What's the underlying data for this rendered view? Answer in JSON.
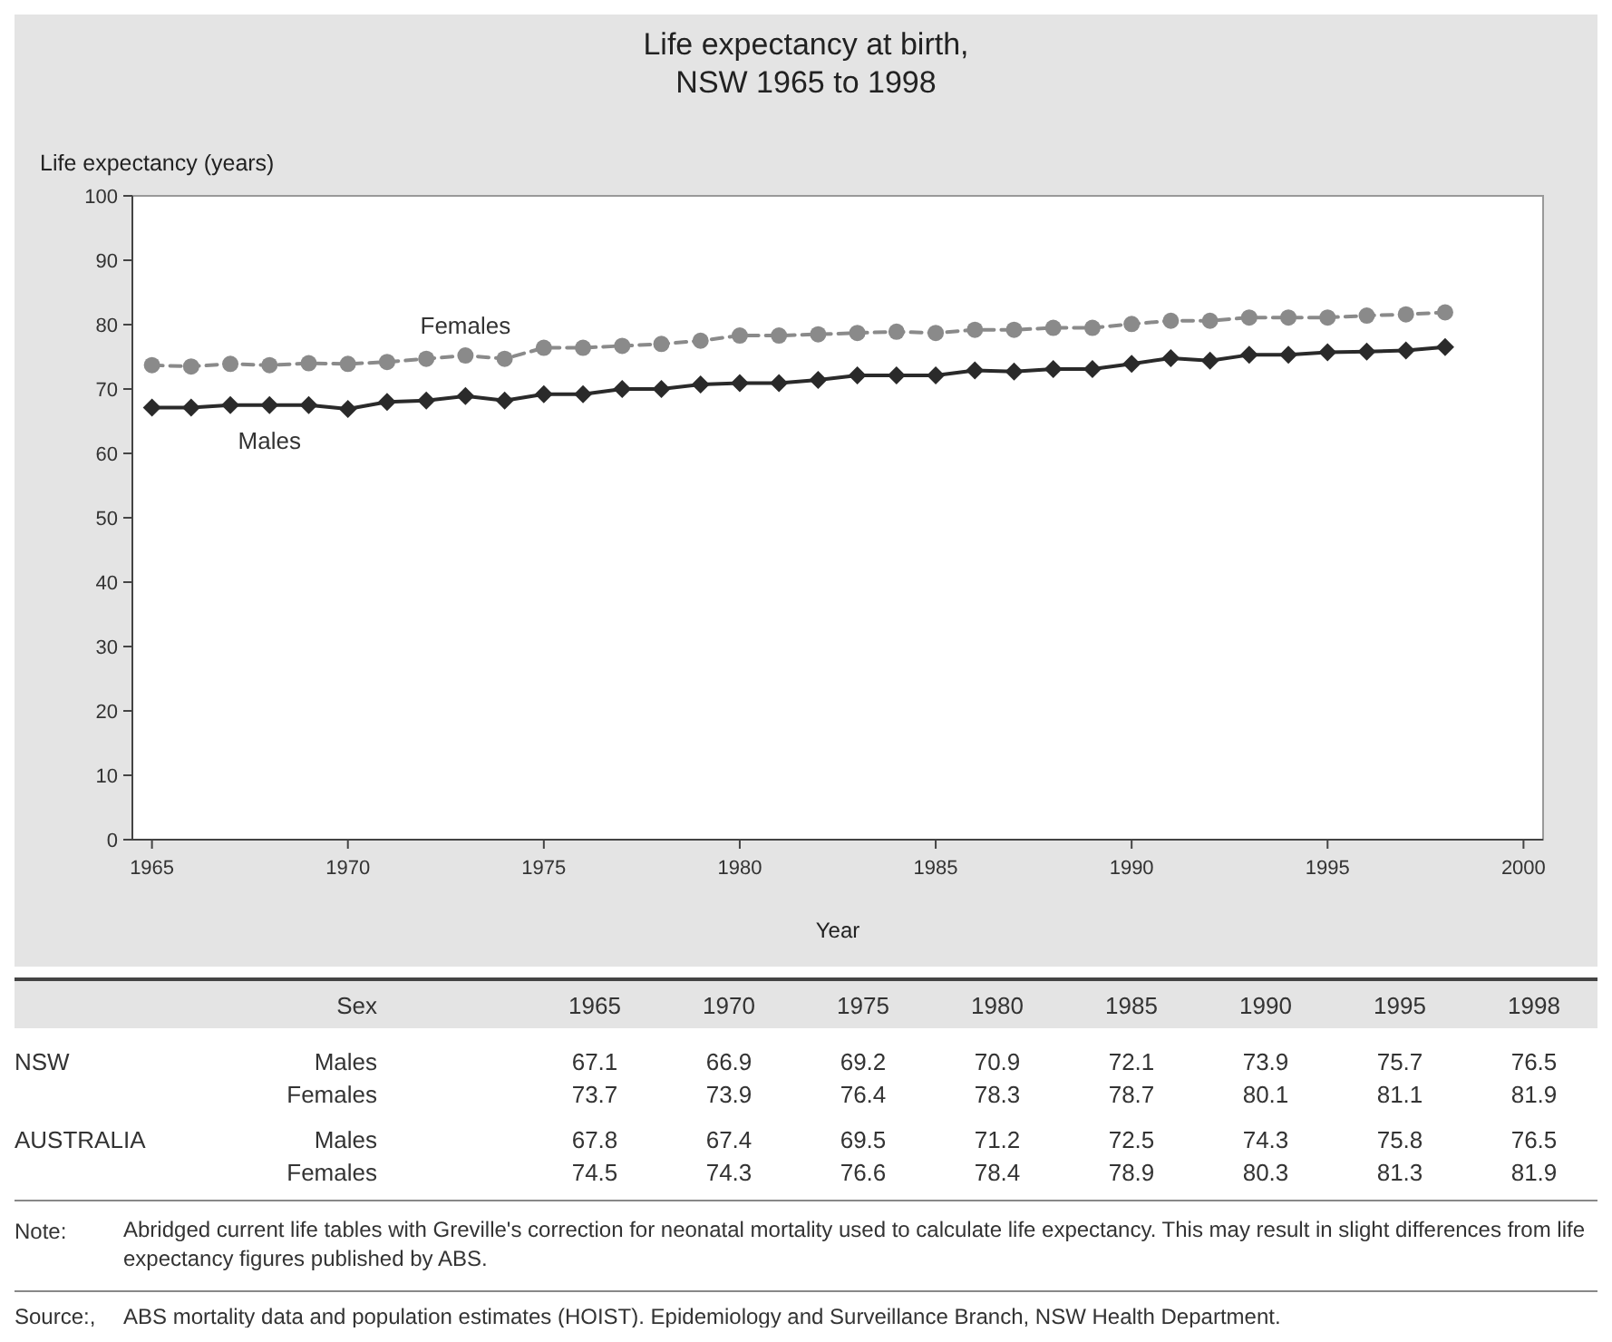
{
  "chart_data": [
    {
      "type": "line",
      "title": "Life expectancy at birth,\nNSW 1965 to 1998",
      "xlabel": "Year",
      "ylabel": "Life expectancy (years)",
      "x": [
        1965,
        1966,
        1967,
        1968,
        1969,
        1970,
        1971,
        1972,
        1973,
        1974,
        1975,
        1976,
        1977,
        1978,
        1979,
        1980,
        1981,
        1982,
        1983,
        1984,
        1985,
        1986,
        1987,
        1988,
        1989,
        1990,
        1991,
        1992,
        1993,
        1994,
        1995,
        1996,
        1997,
        1998
      ],
      "series": [
        {
          "name": "Females",
          "color": "#8a8a8a",
          "marker": "circle",
          "line_style": "dashed",
          "values": [
            73.7,
            73.5,
            73.9,
            73.7,
            74.0,
            73.9,
            74.2,
            74.7,
            75.2,
            74.7,
            76.4,
            76.4,
            76.7,
            77.0,
            77.5,
            78.3,
            78.3,
            78.5,
            78.7,
            78.9,
            78.7,
            79.2,
            79.2,
            79.5,
            79.5,
            80.1,
            80.6,
            80.6,
            81.1,
            81.1,
            81.1,
            81.4,
            81.6,
            81.9
          ]
        },
        {
          "name": "Males",
          "color": "#2a2a2a",
          "marker": "diamond",
          "line_style": "solid",
          "values": [
            67.1,
            67.1,
            67.5,
            67.5,
            67.5,
            66.9,
            68.0,
            68.2,
            68.9,
            68.2,
            69.2,
            69.2,
            70.0,
            70.0,
            70.7,
            70.9,
            70.9,
            71.4,
            72.1,
            72.1,
            72.1,
            72.9,
            72.7,
            73.1,
            73.1,
            73.9,
            74.8,
            74.4,
            75.3,
            75.3,
            75.7,
            75.8,
            76.0,
            76.5
          ]
        }
      ],
      "xlim": [
        1964.5,
        2000.5
      ],
      "xticks": [
        1965,
        1970,
        1975,
        1980,
        1985,
        1990,
        1995,
        2000
      ],
      "ylim": [
        0,
        100
      ],
      "yticks": [
        0,
        10,
        20,
        30,
        40,
        50,
        60,
        70,
        80,
        90,
        100
      ],
      "grid": false
    },
    {
      "type": "heatmap",
      "categories": [
        "1965",
        "1970",
        "1975",
        "1980",
        "1985",
        "1990",
        "1995",
        "1998"
      ],
      "y_categories": [
        "Males",
        "Females",
        "Males",
        "Females"
      ],
      "data_labels": true,
      "cells": [
        [
          67.1,
          66.9,
          69.2,
          70.9,
          72.1,
          73.9,
          75.7,
          76.5
        ],
        [
          73.7,
          73.9,
          76.4,
          78.3,
          78.7,
          80.1,
          81.1,
          81.9
        ],
        [
          67.8,
          67.4,
          69.5,
          71.2,
          72.5,
          74.3,
          75.8,
          76.5
        ],
        [
          74.5,
          74.3,
          76.6,
          78.4,
          78.9,
          80.3,
          81.3,
          81.9
        ]
      ],
      "annotations": [
        "Sex",
        "NSW",
        "AUSTRALIA",
        "Note:",
        "Abridged current life tables with Greville's correction for neonatal mortality used to calculate life expectancy. This may result in slight differences from life expectancy figures published by ABS.",
        "Source:,",
        "ABS mortality data and population estimates (HOIST). Epidemiology and Surveillance Branch, NSW Health Department."
      ]
    }
  ]
}
